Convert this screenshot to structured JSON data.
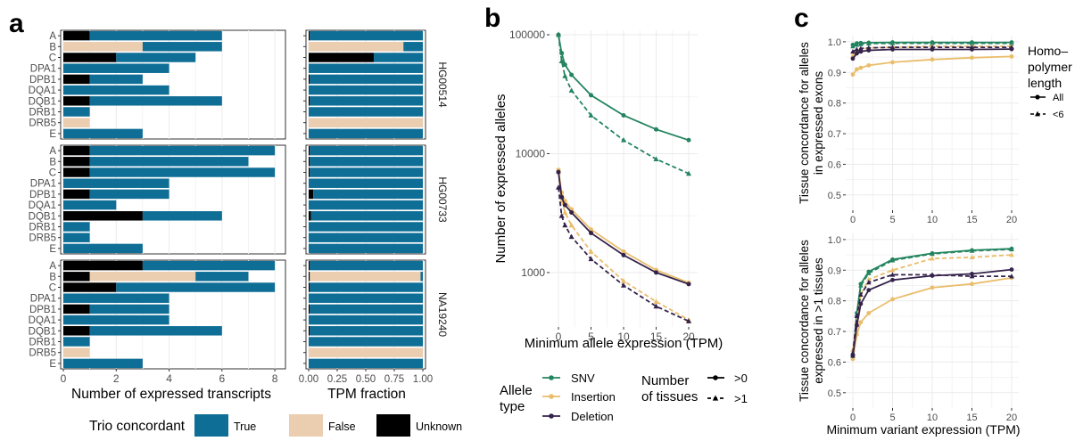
{
  "colors": {
    "true": "#0f6e96",
    "false": "#ebcdb0",
    "unknown": "#000000",
    "snv": "#23845f",
    "insertion": "#e9bd6a",
    "deletion": "#34224b"
  },
  "panel_letters": [
    "a",
    "b",
    "c"
  ],
  "chart_data": [
    {
      "id": "a",
      "type": "bar",
      "subtype": "stacked-horizontal",
      "xlabel": "Number of expressed transcripts",
      "xlim": [
        0,
        8.3
      ],
      "xticks": [
        0,
        2,
        4,
        6,
        8
      ],
      "categories": [
        "A",
        "B",
        "C",
        "DPA1",
        "DPB1",
        "DQA1",
        "DQB1",
        "DRB1",
        "DRB5",
        "E"
      ],
      "samples": [
        {
          "name": "HG00514",
          "bars": [
            [
              {
                "cat": "unknown",
                "v": 1
              },
              {
                "cat": "true",
                "v": 5
              }
            ],
            [
              {
                "cat": "false",
                "v": 3
              },
              {
                "cat": "true",
                "v": 3
              }
            ],
            [
              {
                "cat": "unknown",
                "v": 2
              },
              {
                "cat": "true",
                "v": 3
              }
            ],
            [
              {
                "cat": "true",
                "v": 4
              }
            ],
            [
              {
                "cat": "unknown",
                "v": 1
              },
              {
                "cat": "true",
                "v": 2
              }
            ],
            [
              {
                "cat": "true",
                "v": 4
              }
            ],
            [
              {
                "cat": "unknown",
                "v": 1
              },
              {
                "cat": "true",
                "v": 5
              }
            ],
            [
              {
                "cat": "true",
                "v": 1
              }
            ],
            [
              {
                "cat": "false",
                "v": 1
              }
            ],
            [
              {
                "cat": "true",
                "v": 3
              }
            ]
          ]
        },
        {
          "name": "HG00733",
          "bars": [
            [
              {
                "cat": "unknown",
                "v": 1
              },
              {
                "cat": "true",
                "v": 7
              }
            ],
            [
              {
                "cat": "unknown",
                "v": 1
              },
              {
                "cat": "true",
                "v": 6
              }
            ],
            [
              {
                "cat": "unknown",
                "v": 1
              },
              {
                "cat": "true",
                "v": 7
              }
            ],
            [
              {
                "cat": "true",
                "v": 4
              }
            ],
            [
              {
                "cat": "unknown",
                "v": 1
              },
              {
                "cat": "true",
                "v": 3
              }
            ],
            [
              {
                "cat": "true",
                "v": 2
              }
            ],
            [
              {
                "cat": "unknown",
                "v": 3
              },
              {
                "cat": "true",
                "v": 3
              }
            ],
            [
              {
                "cat": "true",
                "v": 1
              }
            ],
            [
              {
                "cat": "true",
                "v": 1
              }
            ],
            [
              {
                "cat": "true",
                "v": 3
              }
            ]
          ]
        },
        {
          "name": "NA19240",
          "bars": [
            [
              {
                "cat": "unknown",
                "v": 3
              },
              {
                "cat": "true",
                "v": 5
              }
            ],
            [
              {
                "cat": "unknown",
                "v": 1
              },
              {
                "cat": "false",
                "v": 4
              },
              {
                "cat": "true",
                "v": 2
              }
            ],
            [
              {
                "cat": "unknown",
                "v": 2
              },
              {
                "cat": "true",
                "v": 6
              }
            ],
            [
              {
                "cat": "true",
                "v": 4
              }
            ],
            [
              {
                "cat": "unknown",
                "v": 1
              },
              {
                "cat": "true",
                "v": 3
              }
            ],
            [
              {
                "cat": "true",
                "v": 4
              }
            ],
            [
              {
                "cat": "unknown",
                "v": 1
              },
              {
                "cat": "true",
                "v": 5
              }
            ],
            [
              {
                "cat": "true",
                "v": 1
              }
            ],
            [
              {
                "cat": "false",
                "v": 1
              }
            ],
            [
              {
                "cat": "true",
                "v": 3
              }
            ]
          ]
        }
      ]
    },
    {
      "id": "a-tpm",
      "type": "bar",
      "subtype": "stacked-horizontal-fraction",
      "xlabel": "TPM fraction",
      "xlim": [
        0,
        1
      ],
      "xticks": [
        "0.00",
        "0.25",
        "0.50",
        "0.75",
        "1.00"
      ],
      "samples": [
        {
          "name": "HG00514",
          "bars": [
            [
              {
                "cat": "unknown",
                "v": 0.01
              },
              {
                "cat": "true",
                "v": 0.99
              }
            ],
            [
              {
                "cat": "false",
                "v": 0.83
              },
              {
                "cat": "true",
                "v": 0.17
              }
            ],
            [
              {
                "cat": "unknown",
                "v": 0.57
              },
              {
                "cat": "true",
                "v": 0.43
              }
            ],
            [
              {
                "cat": "true",
                "v": 1.0
              }
            ],
            [
              {
                "cat": "unknown",
                "v": 0.01
              },
              {
                "cat": "true",
                "v": 0.99
              }
            ],
            [
              {
                "cat": "true",
                "v": 1.0
              }
            ],
            [
              {
                "cat": "unknown",
                "v": 0.01
              },
              {
                "cat": "true",
                "v": 0.99
              }
            ],
            [
              {
                "cat": "true",
                "v": 1.0
              }
            ],
            [
              {
                "cat": "false",
                "v": 1.0
              }
            ],
            [
              {
                "cat": "true",
                "v": 1.0
              }
            ]
          ]
        },
        {
          "name": "HG00733",
          "bars": [
            [
              {
                "cat": "unknown",
                "v": 0.01
              },
              {
                "cat": "true",
                "v": 0.99
              }
            ],
            [
              {
                "cat": "unknown",
                "v": 0.01
              },
              {
                "cat": "true",
                "v": 0.99
              }
            ],
            [
              {
                "cat": "unknown",
                "v": 0.01
              },
              {
                "cat": "true",
                "v": 0.99
              }
            ],
            [
              {
                "cat": "true",
                "v": 1.0
              }
            ],
            [
              {
                "cat": "unknown",
                "v": 0.04
              },
              {
                "cat": "true",
                "v": 0.96
              }
            ],
            [
              {
                "cat": "true",
                "v": 1.0
              }
            ],
            [
              {
                "cat": "unknown",
                "v": 0.02
              },
              {
                "cat": "true",
                "v": 0.98
              }
            ],
            [
              {
                "cat": "true",
                "v": 1.0
              }
            ],
            [
              {
                "cat": "true",
                "v": 1.0
              }
            ],
            [
              {
                "cat": "true",
                "v": 1.0
              }
            ]
          ]
        },
        {
          "name": "NA19240",
          "bars": [
            [
              {
                "cat": "unknown",
                "v": 0.01
              },
              {
                "cat": "true",
                "v": 0.99
              }
            ],
            [
              {
                "cat": "unknown",
                "v": 0.01
              },
              {
                "cat": "false",
                "v": 0.97
              },
              {
                "cat": "true",
                "v": 0.02
              }
            ],
            [
              {
                "cat": "unknown",
                "v": 0.01
              },
              {
                "cat": "true",
                "v": 0.99
              }
            ],
            [
              {
                "cat": "true",
                "v": 1.0
              }
            ],
            [
              {
                "cat": "unknown",
                "v": 0.01
              },
              {
                "cat": "true",
                "v": 0.99
              }
            ],
            [
              {
                "cat": "true",
                "v": 1.0
              }
            ],
            [
              {
                "cat": "unknown",
                "v": 0.01
              },
              {
                "cat": "true",
                "v": 0.99
              }
            ],
            [
              {
                "cat": "true",
                "v": 1.0
              }
            ],
            [
              {
                "cat": "false",
                "v": 1.0
              }
            ],
            [
              {
                "cat": "true",
                "v": 1.0
              }
            ]
          ]
        }
      ],
      "legend": {
        "title": "Trio concordant",
        "entries": [
          {
            "key": "true",
            "label": "True"
          },
          {
            "key": "false",
            "label": "False"
          },
          {
            "key": "unknown",
            "label": "Unknown"
          }
        ],
        "placement": "bottom"
      }
    },
    {
      "id": "b",
      "type": "line",
      "xlabel": "Minimum allele expression (TPM)",
      "ylabel": "Number of expressed alleles",
      "yscale": "log",
      "ylim": [
        380,
        100000
      ],
      "xlim": [
        0,
        20
      ],
      "xticks": [
        0,
        5,
        10,
        15,
        20
      ],
      "yticks": [
        {
          "v": 100000,
          "label": "100000"
        },
        {
          "v": 10000,
          "label": "10000"
        },
        {
          "v": 1000,
          "label": "1000"
        }
      ],
      "x": [
        0,
        0.5,
        1,
        2,
        5,
        10,
        15,
        20
      ],
      "series": [
        {
          "name": "SNV",
          "type": ">0",
          "values": [
            100000,
            70000,
            56000,
            46000,
            31000,
            21000,
            16000,
            13000
          ]
        },
        {
          "name": "SNV",
          "type": ">1",
          "values": [
            100000,
            60000,
            45000,
            34000,
            21000,
            13000,
            9000,
            6800
          ]
        },
        {
          "name": "Insertion",
          "type": ">0",
          "values": [
            7300,
            4700,
            4000,
            3400,
            2300,
            1500,
            1050,
            820
          ]
        },
        {
          "name": "Insertion",
          "type": ">1",
          "values": [
            7000,
            4000,
            3200,
            2500,
            1500,
            850,
            570,
            400
          ]
        },
        {
          "name": "Deletion",
          "type": ">0",
          "values": [
            7000,
            4300,
            3700,
            3200,
            2150,
            1400,
            1000,
            800
          ]
        },
        {
          "name": "Deletion",
          "type": ">1",
          "values": [
            5200,
            3000,
            2500,
            2000,
            1300,
            780,
            520,
            390
          ]
        }
      ],
      "legend": {
        "type_title": "Allele type",
        "type_entries": [
          {
            "key": "snv",
            "label": "SNV"
          },
          {
            "key": "insertion",
            "label": "Insertion"
          },
          {
            "key": "deletion",
            "label": "Deletion"
          }
        ],
        "tissue_title": "Number of tissues",
        "tissue_entries": [
          ">0",
          ">1"
        ],
        "placement": "bottom"
      }
    },
    {
      "id": "c-top",
      "type": "line",
      "ylabel": "Tissue concordance for alleles in expressed exons",
      "ylim": [
        0.45,
        1.02
      ],
      "xlim": [
        0,
        20
      ],
      "xticks": [
        0,
        5,
        10,
        15,
        20
      ],
      "yticks": [
        "0.5",
        "0.6",
        "0.7",
        "0.8",
        "0.9",
        "1.0"
      ],
      "x": [
        0,
        0.5,
        1,
        2,
        5,
        10,
        15,
        20
      ],
      "series": [
        {
          "name": "SNV",
          "type": "All",
          "values": [
            0.99,
            0.995,
            0.996,
            0.997,
            0.998,
            0.998,
            0.998,
            0.998
          ]
        },
        {
          "name": "SNV",
          "type": "<6",
          "values": [
            0.985,
            0.99,
            0.992,
            0.994,
            0.995,
            0.995,
            0.995,
            0.995
          ]
        },
        {
          "name": "Insertion",
          "type": "All",
          "values": [
            0.893,
            0.91,
            0.915,
            0.923,
            0.933,
            0.942,
            0.948,
            0.952
          ]
        },
        {
          "name": "Insertion",
          "type": "<6",
          "values": [
            0.955,
            0.97,
            0.975,
            0.98,
            0.982,
            0.985,
            0.985,
            0.985
          ]
        },
        {
          "name": "Deletion",
          "type": "All",
          "values": [
            0.945,
            0.962,
            0.968,
            0.972,
            0.975,
            0.975,
            0.975,
            0.976
          ]
        },
        {
          "name": "Deletion",
          "type": "<6",
          "values": [
            0.968,
            0.975,
            0.978,
            0.98,
            0.982,
            0.982,
            0.982,
            0.982
          ]
        }
      ],
      "legend": {
        "title": "Homo–polymer length",
        "entries": [
          "All",
          "<6"
        ],
        "placement": "right"
      }
    },
    {
      "id": "c-bottom",
      "type": "line",
      "xlabel": "Minimum variant expression (TPM)",
      "ylabel": "Tissue concordance for alleles expressed in >1 tissues",
      "ylim": [
        0.45,
        1.02
      ],
      "xlim": [
        0,
        20
      ],
      "xticks": [
        0,
        5,
        10,
        15,
        20
      ],
      "yticks": [
        "0.5",
        "0.6",
        "0.7",
        "0.8",
        "0.9",
        "1.0"
      ],
      "x": [
        0,
        0.5,
        1,
        2,
        5,
        10,
        15,
        20
      ],
      "series": [
        {
          "name": "SNV",
          "type": "All",
          "values": [
            0.62,
            0.76,
            0.855,
            0.895,
            0.935,
            0.955,
            0.965,
            0.97
          ]
        },
        {
          "name": "SNV",
          "type": "<6",
          "values": [
            0.62,
            0.755,
            0.85,
            0.89,
            0.932,
            0.953,
            0.963,
            0.968
          ]
        },
        {
          "name": "Insertion",
          "type": "All",
          "values": [
            0.61,
            0.69,
            0.73,
            0.76,
            0.805,
            0.843,
            0.855,
            0.875
          ]
        },
        {
          "name": "Insertion",
          "type": "<6",
          "values": [
            0.64,
            0.73,
            0.82,
            0.87,
            0.9,
            0.938,
            0.942,
            0.95
          ]
        },
        {
          "name": "Deletion",
          "type": "All",
          "values": [
            0.62,
            0.72,
            0.79,
            0.835,
            0.868,
            0.882,
            0.888,
            0.902
          ]
        },
        {
          "name": "Deletion",
          "type": "<6",
          "values": [
            0.63,
            0.75,
            0.82,
            0.86,
            0.885,
            0.885,
            0.88,
            0.88
          ]
        }
      ]
    }
  ]
}
